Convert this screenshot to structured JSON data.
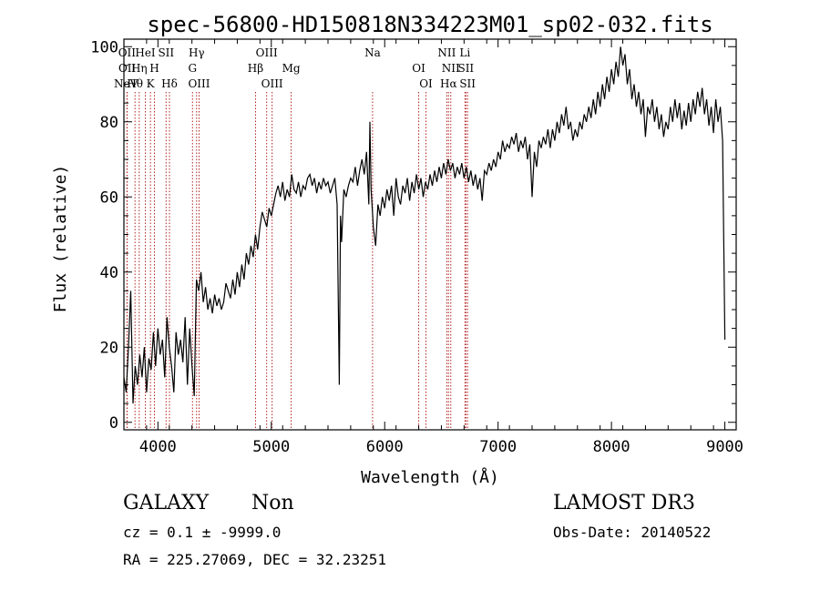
{
  "chart_data": {
    "type": "line",
    "title": "spec-56800-HD150818N334223M01_sp02-032.fits",
    "xlabel": "Wavelength (Å)",
    "ylabel": "Flux (relative)",
    "xlim": [
      3700,
      9100
    ],
    "ylim": [
      -2,
      102
    ],
    "xticks": [
      4000,
      5000,
      6000,
      7000,
      8000,
      9000
    ],
    "yticks": [
      0,
      20,
      40,
      60,
      80,
      100
    ],
    "series": [
      {
        "name": "flux",
        "points": [
          [
            3700,
            12
          ],
          [
            3720,
            8
          ],
          [
            3740,
            20
          ],
          [
            3760,
            35
          ],
          [
            3780,
            5
          ],
          [
            3800,
            15
          ],
          [
            3820,
            10
          ],
          [
            3840,
            18
          ],
          [
            3860,
            12
          ],
          [
            3880,
            20
          ],
          [
            3900,
            8
          ],
          [
            3920,
            17
          ],
          [
            3940,
            14
          ],
          [
            3960,
            24
          ],
          [
            3980,
            15
          ],
          [
            4000,
            25
          ],
          [
            4020,
            18
          ],
          [
            4040,
            22
          ],
          [
            4060,
            12
          ],
          [
            4080,
            28
          ],
          [
            4100,
            20
          ],
          [
            4120,
            15
          ],
          [
            4140,
            8
          ],
          [
            4160,
            24
          ],
          [
            4180,
            18
          ],
          [
            4200,
            22
          ],
          [
            4220,
            16
          ],
          [
            4240,
            28
          ],
          [
            4260,
            10
          ],
          [
            4280,
            25
          ],
          [
            4300,
            15
          ],
          [
            4320,
            7
          ],
          [
            4340,
            38
          ],
          [
            4360,
            35
          ],
          [
            4380,
            40
          ],
          [
            4400,
            32
          ],
          [
            4420,
            36
          ],
          [
            4440,
            30
          ],
          [
            4460,
            33
          ],
          [
            4480,
            29
          ],
          [
            4500,
            34
          ],
          [
            4520,
            31
          ],
          [
            4540,
            33
          ],
          [
            4560,
            30
          ],
          [
            4580,
            32
          ],
          [
            4600,
            37
          ],
          [
            4620,
            35
          ],
          [
            4640,
            33
          ],
          [
            4660,
            38
          ],
          [
            4680,
            34
          ],
          [
            4700,
            40
          ],
          [
            4720,
            36
          ],
          [
            4740,
            42
          ],
          [
            4760,
            38
          ],
          [
            4780,
            45
          ],
          [
            4800,
            42
          ],
          [
            4820,
            47
          ],
          [
            4840,
            44
          ],
          [
            4860,
            50
          ],
          [
            4880,
            46
          ],
          [
            4900,
            52
          ],
          [
            4920,
            56
          ],
          [
            4940,
            54
          ],
          [
            4960,
            52
          ],
          [
            4980,
            57
          ],
          [
            5000,
            55
          ],
          [
            5020,
            58
          ],
          [
            5040,
            61
          ],
          [
            5060,
            63
          ],
          [
            5080,
            60
          ],
          [
            5100,
            64
          ],
          [
            5120,
            59
          ],
          [
            5140,
            62
          ],
          [
            5160,
            60
          ],
          [
            5180,
            66
          ],
          [
            5200,
            62
          ],
          [
            5220,
            61
          ],
          [
            5240,
            64
          ],
          [
            5260,
            60
          ],
          [
            5280,
            63
          ],
          [
            5300,
            62
          ],
          [
            5320,
            65
          ],
          [
            5340,
            66
          ],
          [
            5360,
            63
          ],
          [
            5380,
            65
          ],
          [
            5400,
            61
          ],
          [
            5420,
            64
          ],
          [
            5440,
            62
          ],
          [
            5460,
            65
          ],
          [
            5480,
            63
          ],
          [
            5500,
            64
          ],
          [
            5520,
            61
          ],
          [
            5540,
            63
          ],
          [
            5560,
            65
          ],
          [
            5580,
            58
          ],
          [
            5600,
            10
          ],
          [
            5610,
            55
          ],
          [
            5620,
            48
          ],
          [
            5640,
            62
          ],
          [
            5660,
            60
          ],
          [
            5680,
            63
          ],
          [
            5700,
            65
          ],
          [
            5720,
            64
          ],
          [
            5740,
            68
          ],
          [
            5760,
            63
          ],
          [
            5780,
            67
          ],
          [
            5800,
            70
          ],
          [
            5820,
            66
          ],
          [
            5840,
            72
          ],
          [
            5860,
            58
          ],
          [
            5870,
            80
          ],
          [
            5880,
            62
          ],
          [
            5900,
            52
          ],
          [
            5920,
            47
          ],
          [
            5940,
            58
          ],
          [
            5960,
            55
          ],
          [
            5980,
            60
          ],
          [
            6000,
            57
          ],
          [
            6020,
            62
          ],
          [
            6040,
            59
          ],
          [
            6060,
            63
          ],
          [
            6080,
            55
          ],
          [
            6100,
            65
          ],
          [
            6120,
            60
          ],
          [
            6140,
            58
          ],
          [
            6160,
            63
          ],
          [
            6180,
            61
          ],
          [
            6200,
            65
          ],
          [
            6220,
            59
          ],
          [
            6240,
            64
          ],
          [
            6260,
            61
          ],
          [
            6280,
            66
          ],
          [
            6300,
            62
          ],
          [
            6320,
            65
          ],
          [
            6340,
            60
          ],
          [
            6360,
            64
          ],
          [
            6380,
            62
          ],
          [
            6400,
            66
          ],
          [
            6420,
            63
          ],
          [
            6440,
            67
          ],
          [
            6460,
            64
          ],
          [
            6480,
            68
          ],
          [
            6500,
            65
          ],
          [
            6520,
            69
          ],
          [
            6540,
            66
          ],
          [
            6560,
            70
          ],
          [
            6580,
            67
          ],
          [
            6600,
            69
          ],
          [
            6620,
            65
          ],
          [
            6640,
            68
          ],
          [
            6660,
            66
          ],
          [
            6680,
            69
          ],
          [
            6700,
            65
          ],
          [
            6720,
            68
          ],
          [
            6740,
            64
          ],
          [
            6760,
            67
          ],
          [
            6780,
            63
          ],
          [
            6800,
            66
          ],
          [
            6820,
            62
          ],
          [
            6840,
            65
          ],
          [
            6860,
            59
          ],
          [
            6880,
            67
          ],
          [
            6900,
            66
          ],
          [
            6920,
            69
          ],
          [
            6940,
            67
          ],
          [
            6960,
            70
          ],
          [
            6980,
            68
          ],
          [
            7000,
            72
          ],
          [
            7020,
            70
          ],
          [
            7040,
            75
          ],
          [
            7060,
            72
          ],
          [
            7080,
            74
          ],
          [
            7100,
            73
          ],
          [
            7120,
            76
          ],
          [
            7140,
            74
          ],
          [
            7160,
            77
          ],
          [
            7180,
            72
          ],
          [
            7200,
            75
          ],
          [
            7220,
            73
          ],
          [
            7240,
            76
          ],
          [
            7260,
            70
          ],
          [
            7280,
            74
          ],
          [
            7300,
            60
          ],
          [
            7320,
            72
          ],
          [
            7340,
            68
          ],
          [
            7360,
            75
          ],
          [
            7380,
            73
          ],
          [
            7400,
            76
          ],
          [
            7420,
            74
          ],
          [
            7440,
            78
          ],
          [
            7460,
            73
          ],
          [
            7480,
            78
          ],
          [
            7500,
            75
          ],
          [
            7520,
            80
          ],
          [
            7540,
            77
          ],
          [
            7560,
            82
          ],
          [
            7580,
            79
          ],
          [
            7600,
            84
          ],
          [
            7620,
            78
          ],
          [
            7640,
            80
          ],
          [
            7660,
            75
          ],
          [
            7680,
            78
          ],
          [
            7700,
            76
          ],
          [
            7720,
            80
          ],
          [
            7740,
            78
          ],
          [
            7760,
            82
          ],
          [
            7780,
            80
          ],
          [
            7800,
            84
          ],
          [
            7820,
            81
          ],
          [
            7840,
            86
          ],
          [
            7860,
            82
          ],
          [
            7880,
            88
          ],
          [
            7900,
            84
          ],
          [
            7920,
            90
          ],
          [
            7940,
            86
          ],
          [
            7960,
            92
          ],
          [
            7980,
            88
          ],
          [
            8000,
            94
          ],
          [
            8020,
            90
          ],
          [
            8040,
            96
          ],
          [
            8060,
            92
          ],
          [
            8080,
            100
          ],
          [
            8100,
            95
          ],
          [
            8120,
            98
          ],
          [
            8140,
            90
          ],
          [
            8160,
            94
          ],
          [
            8180,
            86
          ],
          [
            8200,
            90
          ],
          [
            8220,
            84
          ],
          [
            8240,
            88
          ],
          [
            8260,
            82
          ],
          [
            8280,
            86
          ],
          [
            8300,
            76
          ],
          [
            8320,
            84
          ],
          [
            8340,
            82
          ],
          [
            8360,
            86
          ],
          [
            8380,
            80
          ],
          [
            8400,
            84
          ],
          [
            8420,
            78
          ],
          [
            8440,
            82
          ],
          [
            8460,
            76
          ],
          [
            8480,
            80
          ],
          [
            8500,
            78
          ],
          [
            8520,
            84
          ],
          [
            8540,
            80
          ],
          [
            8560,
            86
          ],
          [
            8580,
            81
          ],
          [
            8600,
            85
          ],
          [
            8620,
            78
          ],
          [
            8640,
            83
          ],
          [
            8660,
            79
          ],
          [
            8680,
            85
          ],
          [
            8700,
            80
          ],
          [
            8720,
            86
          ],
          [
            8740,
            82
          ],
          [
            8760,
            88
          ],
          [
            8780,
            84
          ],
          [
            8800,
            89
          ],
          [
            8820,
            82
          ],
          [
            8840,
            86
          ],
          [
            8860,
            79
          ],
          [
            8880,
            84
          ],
          [
            8900,
            77
          ],
          [
            8920,
            86
          ],
          [
            8940,
            80
          ],
          [
            8960,
            84
          ],
          [
            8980,
            75
          ],
          [
            9000,
            22
          ]
        ]
      }
    ],
    "lines": [
      {
        "label": "NeV",
        "wave": 3426,
        "row": 3
      },
      {
        "label": "OII",
        "wave": 3727,
        "row": 0
      },
      {
        "label": "OII",
        "wave": 3729,
        "row": 1
      },
      {
        "label": "Hθ",
        "wave": 3798,
        "row": 2
      },
      {
        "label": "Hη",
        "wave": 3835,
        "row": 1
      },
      {
        "label": "HeI",
        "wave": 3889,
        "row": 0
      },
      {
        "label": "K",
        "wave": 3934,
        "row": 2
      },
      {
        "label": "H",
        "wave": 3969,
        "row": 1
      },
      {
        "label": "SII",
        "wave": 4072,
        "row": 0
      },
      {
        "label": "Hδ",
        "wave": 4102,
        "row": 2
      },
      {
        "label": "Hγ",
        "wave": 4341,
        "row": 0
      },
      {
        "label": "G",
        "wave": 4305,
        "row": 1
      },
      {
        "label": "OIII",
        "wave": 4363,
        "row": 2
      },
      {
        "label": "Hβ",
        "wave": 4861,
        "row": 1
      },
      {
        "label": "OIII",
        "wave": 4959,
        "row": 0
      },
      {
        "label": "OIII",
        "wave": 5007,
        "row": 2
      },
      {
        "label": "Mg",
        "wave": 5175,
        "row": 1
      },
      {
        "label": "Na",
        "wave": 5893,
        "row": 0
      },
      {
        "label": "OI",
        "wave": 6300,
        "row": 1
      },
      {
        "label": "OI",
        "wave": 6364,
        "row": 2
      },
      {
        "label": "NII",
        "wave": 6548,
        "row": 0
      },
      {
        "label": "NII",
        "wave": 6583,
        "row": 1
      },
      {
        "label": "Hα",
        "wave": 6563,
        "row": 2
      },
      {
        "label": "Li",
        "wave": 6708,
        "row": 0
      },
      {
        "label": "SII",
        "wave": 6716,
        "row": 1
      },
      {
        "label": "SII",
        "wave": 6731,
        "row": 2
      }
    ]
  },
  "footer": {
    "object_class": "GALAXY",
    "subclass": "Non",
    "survey": "LAMOST DR3",
    "cz_line": "cz = 0.1 ± -9999.0",
    "obs_date_line": "Obs-Date: 20140522",
    "coords_line": "RA = 225.27069, DEC =  32.23251"
  },
  "colors": {
    "axis": "#000000",
    "spectrum": "#000000",
    "lines": "#b22222"
  }
}
